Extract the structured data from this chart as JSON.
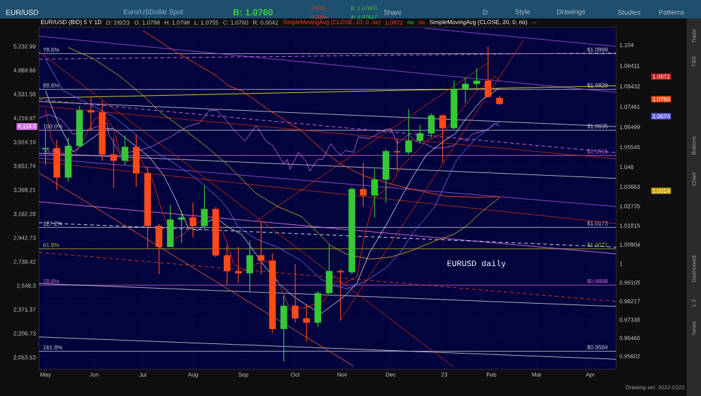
{
  "chart_data": {
    "type": "candlestick",
    "title": "EUR/USD",
    "subtitle": "Euro/USDollar Spot",
    "x": [
      "2022-05-02",
      "2022-05-09",
      "2022-05-16",
      "2022-05-23",
      "2022-05-30",
      "2022-06-06",
      "2022-06-13",
      "2022-06-20",
      "2022-06-27",
      "2022-07-04",
      "2022-07-11",
      "2022-07-18",
      "2022-07-25",
      "2022-08-01",
      "2022-08-08",
      "2022-08-15",
      "2022-08-22",
      "2022-08-29",
      "2022-09-05",
      "2022-09-12",
      "2022-09-19",
      "2022-09-26",
      "2022-10-03",
      "2022-10-10",
      "2022-10-17",
      "2022-10-24",
      "2022-10-31",
      "2022-11-07",
      "2022-11-14",
      "2022-11-21",
      "2022-11-28",
      "2022-12-05",
      "2022-12-12",
      "2022-12-19",
      "2022-12-26",
      "2023-01-02",
      "2023-01-09",
      "2023-01-16",
      "2023-01-23",
      "2023-01-30",
      "2023-02-06"
    ],
    "ohlc": [
      [
        1.0545,
        1.0642,
        1.047,
        1.055
      ],
      [
        1.055,
        1.059,
        1.035,
        1.041
      ],
      [
        1.041,
        1.06,
        1.039,
        1.056
      ],
      [
        1.056,
        1.075,
        1.056,
        1.073
      ],
      [
        1.073,
        1.079,
        1.063,
        1.072
      ],
      [
        1.072,
        1.0775,
        1.049,
        1.052
      ],
      [
        1.052,
        1.06,
        1.036,
        1.049
      ],
      [
        1.049,
        1.061,
        1.047,
        1.0555
      ],
      [
        1.0555,
        1.0615,
        1.0365,
        1.043
      ],
      [
        1.043,
        1.046,
        1.007,
        1.018
      ],
      [
        1.018,
        1.019,
        0.995,
        1.008
      ],
      [
        1.008,
        1.028,
        1.008,
        1.021
      ],
      [
        1.021,
        1.025,
        1.01,
        1.022
      ],
      [
        1.022,
        1.029,
        1.0125,
        1.018
      ],
      [
        1.018,
        1.037,
        1.016,
        1.026
      ],
      [
        1.026,
        1.027,
        1.003,
        1.004
      ],
      [
        1.004,
        1.009,
        0.99,
        0.9965
      ],
      [
        0.9965,
        1.008,
        0.991,
        0.9955
      ],
      [
        0.9955,
        1.011,
        0.9865,
        1.004
      ],
      [
        1.004,
        1.02,
        0.995,
        1.0015
      ],
      [
        1.0015,
        1.005,
        0.967,
        0.969
      ],
      [
        0.969,
        0.985,
        0.9535,
        0.98
      ],
      [
        0.98,
        0.9999,
        0.972,
        0.974
      ],
      [
        0.974,
        0.981,
        0.963,
        0.972
      ],
      [
        0.972,
        0.987,
        0.97,
        0.986
      ],
      [
        0.986,
        1.009,
        0.986,
        0.9965
      ],
      [
        0.9965,
        0.9975,
        0.973,
        0.996
      ],
      [
        0.996,
        1.0365,
        0.995,
        1.0355
      ],
      [
        1.0355,
        1.048,
        1.027,
        1.0325
      ],
      [
        1.0325,
        1.045,
        1.022,
        1.04
      ],
      [
        1.04,
        1.0545,
        1.029,
        1.0535
      ],
      [
        1.0535,
        1.0595,
        1.044,
        1.053
      ],
      [
        1.053,
        1.0735,
        1.052,
        1.0585
      ],
      [
        1.0585,
        1.066,
        1.057,
        1.062
      ],
      [
        1.062,
        1.0715,
        1.06,
        1.0705
      ],
      [
        1.0705,
        1.071,
        1.048,
        1.0645
      ],
      [
        1.0645,
        1.087,
        1.064,
        1.083
      ],
      [
        1.083,
        1.0885,
        1.0765,
        1.0855
      ],
      [
        1.0855,
        1.093,
        1.0835,
        1.087
      ],
      [
        1.087,
        1.1033,
        1.079,
        1.0794
      ],
      [
        1.0788,
        1.0798,
        1.0755,
        1.076
      ]
    ],
    "series": [
      {
        "type": "line",
        "color": "#9a4ad0",
        "x": [
          "2022-04-28",
          "2023-04-19"
        ],
        "values": [
          1.1082,
          1.0815
        ]
      },
      {
        "type": "line",
        "color": "#9a4ad0",
        "x": [
          "2022-12-22",
          "2023-04-19"
        ],
        "values": [
          1.112,
          1.1033
        ]
      },
      {
        "type": "line",
        "color": "#e070e8",
        "line_style": "dashed",
        "x": [
          "2022-04-28",
          "2023-04-19"
        ],
        "values": [
          1.0973,
          1.1003
        ]
      },
      {
        "type": "line",
        "color": "#e8e020",
        "x": [
          "2022-04-28",
          "2023-04-19"
        ],
        "values": [
          1.0788,
          1.0846
        ]
      },
      {
        "type": "line",
        "color": "#c0c0c8",
        "x": [
          "2022-04-28",
          "2023-04-19"
        ],
        "values": [
          1.0771,
          1.0652
        ]
      },
      {
        "type": "line",
        "color": "#e070e8",
        "line_style": "dashed",
        "x": [
          "2022-04-28",
          "2023-04-19"
        ],
        "values": [
          1.078,
          1.0528
        ]
      },
      {
        "type": "line",
        "color": "#b02818",
        "x": [
          "2022-04-28",
          "2023-04-19"
        ],
        "values": [
          1.075,
          1.0499
        ]
      },
      {
        "type": "line",
        "color": "#c0c0c8",
        "x": [
          "2022-04-28",
          "2023-04-19"
        ],
        "values": [
          1.0525,
          1.0406
        ]
      },
      {
        "type": "line",
        "color": "#9a4ad0",
        "x": [
          "2022-04-28",
          "2023-04-19"
        ],
        "values": [
          1.0502,
          1.0272
        ]
      },
      {
        "type": "line",
        "color": "#b02818",
        "x": [
          "2022-04-28",
          "2023-04-19"
        ],
        "values": [
          1.0485,
          1.0191
        ]
      },
      {
        "type": "line",
        "color": "#e070e8",
        "x": [
          "2022-04-28",
          "2023-04-19"
        ],
        "values": [
          1.0295,
          1.0047
        ]
      },
      {
        "type": "line",
        "color": "#e8e8f0",
        "line_style": "dashed",
        "x": [
          "2022-04-28",
          "2023-04-19"
        ],
        "values": [
          1.0195,
          1.0079
        ]
      },
      {
        "type": "line",
        "color": "#e03a18",
        "line_style": "dashed",
        "x": [
          "2022-04-28",
          "2023-04-19"
        ],
        "values": [
          1.0054,
          0.9821
        ]
      },
      {
        "type": "line",
        "color": "#c0c0c8",
        "x": [
          "2022-04-28",
          "2023-04-19"
        ],
        "values": [
          0.9906,
          0.9797
        ]
      },
      {
        "type": "line",
        "color": "#c0c0c8",
        "x": [
          "2022-04-28",
          "2023-04-19"
        ],
        "values": [
          0.9652,
          0.9546
        ]
      },
      {
        "type": "line",
        "color": "#c03018",
        "x": [
          "2022-04-28",
          "2023-01-09"
        ],
        "values": [
          1.1008,
          0.9507
        ]
      },
      {
        "type": "line",
        "color": "#f06040",
        "x": [
          "2022-04-28",
          "2022-11-08"
        ],
        "values": [
          1.0432,
          0.9513
        ]
      },
      {
        "type": "line",
        "color": "#c03018",
        "x": [
          "2022-09-09",
          "2023-01-31"
        ],
        "values": [
          1.0204,
          1.096
        ]
      },
      {
        "type": "line",
        "color": "#c03018",
        "x": [
          "2022-10-31",
          "2023-02-21"
        ],
        "values": [
          0.9732,
          1.1064
        ]
      },
      {
        "type": "line",
        "color": "#c060e0",
        "axis": "y2",
        "x": [
          "2022-04-28",
          "2022-05-04",
          "2022-05-06",
          "2022-05-12",
          "2022-05-19",
          "2022-05-23",
          "2022-06-01",
          "2022-06-09",
          "2022-06-10",
          "2022-06-13",
          "2022-06-17",
          "2022-06-28",
          "2022-07-06",
          "2022-07-18",
          "2022-07-29",
          "2022-08-05",
          "2022-08-11",
          "2022-08-16",
          "2022-08-22",
          "2022-08-26",
          "2022-09-02",
          "2022-09-09",
          "2022-09-15",
          "2022-09-19",
          "2022-09-26",
          "2022-09-28",
          "2022-09-30",
          "2022-10-05",
          "2022-10-10",
          "2022-10-12",
          "2022-10-17",
          "2022-10-20",
          "2022-10-25",
          "2022-10-28",
          "2022-10-31",
          "2022-11-03",
          "2022-11-08",
          "2022-11-11",
          "2022-11-18",
          "2022-11-28",
          "2022-12-01",
          "2022-12-05",
          "2022-12-09",
          "2022-12-12",
          "2022-12-16",
          "2022-12-22",
          "2022-12-27",
          "2023-01-03",
          "2023-01-09",
          "2023-01-13",
          "2023-01-17",
          "2023-01-20",
          "2023-01-25",
          "2023-01-30",
          "2023-02-03",
          "2023-02-06"
        ],
        "values": [
          4220,
          4270,
          null,
          4200,
          4020,
          null,
          4100,
          4160,
          4020,
          null,
          3790,
          3830,
          3870,
          3990,
          4120,
          4160,
          4320,
          4320,
          4180,
          4080,
          3940,
          4130,
          3940,
          3890,
          3680,
          3730,
          3620,
          3810,
          3700,
          3600,
          3730,
          3730,
          3910,
          3830,
          3780,
          3830,
          3810,
          3990,
          3970,
          4080,
          4090,
          3910,
          3970,
          4020,
          3940,
          3910,
          3860,
          3860,
          3890,
          3970,
          3940,
          4020,
          4050,
          4080,
          4160,
          4118.5
        ]
      },
      {
        "type": "line",
        "color": "#ff4a12",
        "x": [
          "2022-07-01",
          "2022-07-19",
          "2022-08-16",
          "2022-08-23",
          "2022-08-31",
          "2022-09-19",
          "2022-10-07",
          "2022-10-21",
          "2022-10-31",
          "2022-11-14",
          "2022-11-28",
          "2022-12-14",
          "2023-01-04",
          "2023-01-16",
          "2023-01-23",
          "2023-01-30",
          "2023-02-06"
        ],
        "values": [
          1.111,
          1.1019,
          1.0891,
          1.0846,
          1.0822,
          1.072,
          1.0632,
          1.0532,
          1.0475,
          1.0419,
          1.0386,
          1.0354,
          1.0321,
          1.0318,
          1.0316,
          1.0317,
          1.0318
        ]
      },
      {
        "type": "line",
        "color": "#c8a820",
        "x": [
          "2022-05-16",
          "2022-06-01",
          "2022-06-17",
          "2022-07-01",
          "2022-07-12",
          "2022-07-26",
          "2022-08-10",
          "2022-08-23",
          "2022-08-29",
          "2022-09-09",
          "2022-09-23",
          "2022-10-07",
          "2022-10-18",
          "2022-10-25",
          "2022-11-04",
          "2022-11-18",
          "2022-12-01",
          "2022-12-14",
          "2022-12-28",
          "2023-01-09",
          "2023-01-17",
          "2023-01-26",
          "2023-02-06"
        ],
        "values": [
          1.1029,
          1.0973,
          1.0891,
          1.0801,
          1.072,
          1.0642,
          1.0552,
          1.0465,
          1.0419,
          1.0334,
          1.0269,
          1.0224,
          1.014,
          1.0086,
          1.0044,
          1.0022,
          1.0032,
          1.0063,
          1.0108,
          1.014,
          1.0182,
          1.0246,
          1.0314
        ]
      },
      {
        "type": "line",
        "color": "#6868f0",
        "x": [
          "2022-05-02",
          "2022-05-13",
          "2022-05-27",
          "2022-06-13",
          "2022-06-24",
          "2022-07-07",
          "2022-07-21",
          "2022-08-04",
          "2022-08-17",
          "2022-08-23",
          "2022-08-29",
          "2022-09-09",
          "2022-09-23",
          "2022-10-07",
          "2022-10-19",
          "2022-10-27",
          "2022-11-04",
          "2022-11-16",
          "2022-11-28",
          "2022-12-07",
          "2022-12-15",
          "2022-12-28",
          "2023-01-04",
          "2023-01-10",
          "2023-01-16",
          "2023-01-23",
          "2023-01-30",
          "2023-02-06"
        ],
        "values": [
          1.0973,
          1.0822,
          1.0767,
          1.0699,
          1.0632,
          1.0542,
          1.0475,
          1.0399,
          1.0311,
          1.0256,
          1.0172,
          1.0118,
          1.0076,
          1.0013,
          0.9927,
          0.9896,
          0.9881,
          0.9918,
          0.9981,
          1.0054,
          1.015,
          1.0269,
          1.0386,
          1.0485,
          1.0542,
          1.0598,
          1.0642,
          1.0674
        ]
      },
      {
        "type": "line",
        "color": "#d0d0e0",
        "x": [
          "2022-05-02",
          "2022-05-10",
          "2022-05-19",
          "2022-05-27",
          "2022-06-08",
          "2022-06-13",
          "2022-06-24",
          "2022-07-05",
          "2022-07-14",
          "2022-07-21",
          "2022-07-29",
          "2022-08-04",
          "2022-08-11",
          "2022-08-16",
          "2022-08-23",
          "2022-08-31",
          "2022-09-09",
          "2022-09-14",
          "2022-09-23",
          "2022-09-30",
          "2022-10-10",
          "2022-10-19",
          "2022-10-26",
          "2022-11-02",
          "2022-11-10",
          "2022-11-18",
          "2022-11-28",
          "2022-12-07",
          "2022-12-15",
          "2022-12-23",
          "2023-01-03",
          "2023-01-10",
          "2023-01-16",
          "2023-01-26",
          "2023-02-06"
        ],
        "values": [
          1.0822,
          1.0666,
          1.0532,
          1.0575,
          1.0642,
          1.0642,
          1.0575,
          1.0508,
          1.0419,
          1.0311,
          1.0172,
          1.0159,
          1.0204,
          1.0214,
          1.0172,
          1.014,
          1.0044,
          0.999,
          0.9906,
          0.9856,
          0.9803,
          0.9763,
          0.9803,
          0.9843,
          0.9906,
          1.0054,
          1.0182,
          1.0311,
          1.0419,
          1.0518,
          1.0585,
          1.062,
          1.0686,
          1.0778,
          1.0836
        ]
      },
      {
        "type": "line",
        "color": "#e02a1a",
        "x": [
          "2022-05-02",
          "2022-05-06",
          "2022-05-11",
          "2022-05-16",
          "2022-05-19",
          "2022-05-26",
          "2022-06-01",
          "2022-06-07",
          "2022-06-13",
          "2022-06-16",
          "2022-06-21",
          "2022-06-29",
          "2022-07-07",
          "2022-07-13",
          "2022-07-20",
          "2022-07-26",
          "2022-08-01",
          "2022-08-08",
          "2022-08-11",
          "2022-08-17",
          "2022-08-22",
          "2022-08-26",
          "2022-09-02",
          "2022-09-09",
          "2022-09-16",
          "2022-09-23",
          "2022-09-30",
          "2022-10-10",
          "2022-10-17",
          "2022-10-21",
          "2022-10-28",
          "2022-11-02",
          "2022-11-10",
          "2022-11-15",
          "2022-11-21",
          "2022-12-01",
          "2022-12-08",
          "2022-12-15",
          "2022-12-23",
          "2023-01-02",
          "2023-01-09",
          "2023-01-16",
          "2023-01-23",
          "2023-01-30",
          "2023-02-03",
          "2023-02-06"
        ],
        "values": [
          1.0733,
          1.0585,
          1.0532,
          null,
          1.0508,
          1.0598,
          1.0686,
          1.071,
          1.0642,
          1.0552,
          1.0485,
          1.0508,
          1.0399,
          1.0246,
          1.0118,
          1.014,
          1.0182,
          null,
          1.0224,
          1.0191,
          1.01,
          1.0,
          0.9968,
          1.0,
          1.0013,
          0.9906,
          0.9781,
          0.9793,
          null,
          0.9825,
          0.9918,
          0.9906,
          0.9937,
          1.014,
          1.0311,
          1.0377,
          1.0465,
          1.0518,
          1.0585,
          1.0619,
          null,
          1.0754,
          1.0822,
          1.0856,
          1.0891,
          1.0872
        ]
      }
    ],
    "ref_lines": [
      {
        "axis": "y",
        "value": 1.0999,
        "label": "$1.0999",
        "color": "#d0d0d8"
      },
      {
        "axis": "y",
        "value": 1.0829,
        "label": "$1.0829",
        "color": "#d0d0d8"
      },
      {
        "axis": "y",
        "value": 1.0635,
        "label": "$1.0635",
        "color": "#d0d0d8"
      },
      {
        "axis": "y",
        "value": 1.0515,
        "label": "$1.0515",
        "color": "#e070e8"
      },
      {
        "axis": "y",
        "value": 1.0173,
        "label": "$1.0173",
        "color": "#d0d0d8"
      },
      {
        "axis": "y",
        "value": 1.0071,
        "label": "$1.0071",
        "color": "#c8c020"
      },
      {
        "axis": "y",
        "value": 0.9898,
        "label": "$0.9898",
        "color": "#e070e8"
      },
      {
        "axis": "y",
        "value": 0.9584,
        "label": "$0.9584",
        "color": "#d0d0d8"
      }
    ],
    "annotations": [
      "EUR/USD (BID) 5 Y 1D",
      "D: 2/6/23",
      "O: 1.0788",
      "H: 1.0798",
      "L: 1.0755",
      "C: 1.0760",
      "R: 0.0042",
      "SimpleMovingAvg (CLOSE, 10, 0, no)",
      "1.0872",
      "no",
      "no",
      "SimpleMovingAvg (CLOSE, 20, 0, no)",
      "...",
      "B: 1.0760",
      "-.0033",
      "-0.31%",
      "B: 1.07603",
      "A: 1.07617",
      "Share",
      "D",
      "Style",
      "Drawings",
      "Studies",
      "Patterns",
      "Trade",
      "T&S",
      "Buttons",
      "Chart",
      "Dashboard",
      "L 2",
      "News",
      "Drawing set: 2022-0323",
      "EURUSD daily",
      "4,118.5",
      "1.0872",
      "1.0760",
      "1.0674",
      "1.0314",
      {
        "text": "78.6%",
        "x": "2022-04-30",
        "y": 1.0999
      },
      {
        "text": "88.6%",
        "x": "2022-04-30",
        "y": 1.0829
      },
      {
        "text": "100.0%",
        "x": "2022-04-30",
        "y": 1.0635
      },
      {
        "text": "70.7%",
        "x": "2022-04-30",
        "y": 1.0515
      },
      {
        "text": "127.2%",
        "x": "2022-04-30",
        "y": 1.0173
      },
      {
        "text": "61.8%",
        "x": "2022-04-30",
        "y": 1.0071
      },
      {
        "text": "78.6%",
        "x": "2022-04-30",
        "y": 0.9898
      },
      {
        "text": "161.8%",
        "x": "2022-04-30",
        "y": 0.9584
      }
    ],
    "xlim": [
      "2022-04-28",
      "2023-04-19"
    ],
    "xticks": [
      {
        "value": "2022-05-02",
        "label": "May"
      },
      {
        "value": "2022-06-01",
        "label": "Jun"
      },
      {
        "value": "2022-07-01",
        "label": "Jul"
      },
      {
        "value": "2022-08-01",
        "label": "Aug"
      },
      {
        "value": "2022-09-01",
        "label": "Sep"
      },
      {
        "value": "2022-10-03",
        "label": "Oct"
      },
      {
        "value": "2022-11-01",
        "label": "Nov"
      },
      {
        "value": "2022-12-01",
        "label": "Dec"
      },
      {
        "value": "2023-01-03",
        "label": "23"
      },
      {
        "value": "2023-02-01",
        "label": "Feb"
      },
      {
        "value": "2023-03-01",
        "label": "Mar"
      },
      {
        "value": "2023-04-03",
        "label": "Apr"
      }
    ],
    "ylim": [
      0.9498,
      1.1124
    ],
    "yticks": [
      0.95602,
      0.96466,
      0.97338,
      0.98217,
      0.99105,
      1,
      1.00904,
      1.01815,
      1.02735,
      1.03663,
      1.046,
      1.05545,
      1.06499,
      1.07461,
      1.08432,
      1.09411,
      1.104
    ],
    "y2lim": [
      1984,
      5546
    ],
    "y2ticks": [
      {
        "value": 2053.53,
        "label": "2,053.53"
      },
      {
        "value": 2206.73,
        "label": "2,206.73"
      },
      {
        "value": 2371.37,
        "label": "2,371.37"
      },
      {
        "value": 2548.3,
        "label": "2,548.3"
      },
      {
        "value": 2738.42,
        "label": "2,738.42"
      },
      {
        "value": 2942.73,
        "label": "2,942.73"
      },
      {
        "value": 3162.28,
        "label": "3,162.28"
      },
      {
        "value": 3398.21,
        "label": "3,398.21"
      },
      {
        "value": 3651.74,
        "label": "3,651.74"
      },
      {
        "value": 3924.19,
        "label": "3,924.19"
      },
      {
        "value": 4216.97,
        "label": "4,216.97"
      },
      {
        "value": 4531.58,
        "label": "4,531.58"
      },
      {
        "value": 4869.68,
        "label": "4,869.68"
      },
      {
        "value": 5232.99,
        "label": "5,232.99"
      }
    ],
    "log": "y2",
    "grid": true
  }
}
